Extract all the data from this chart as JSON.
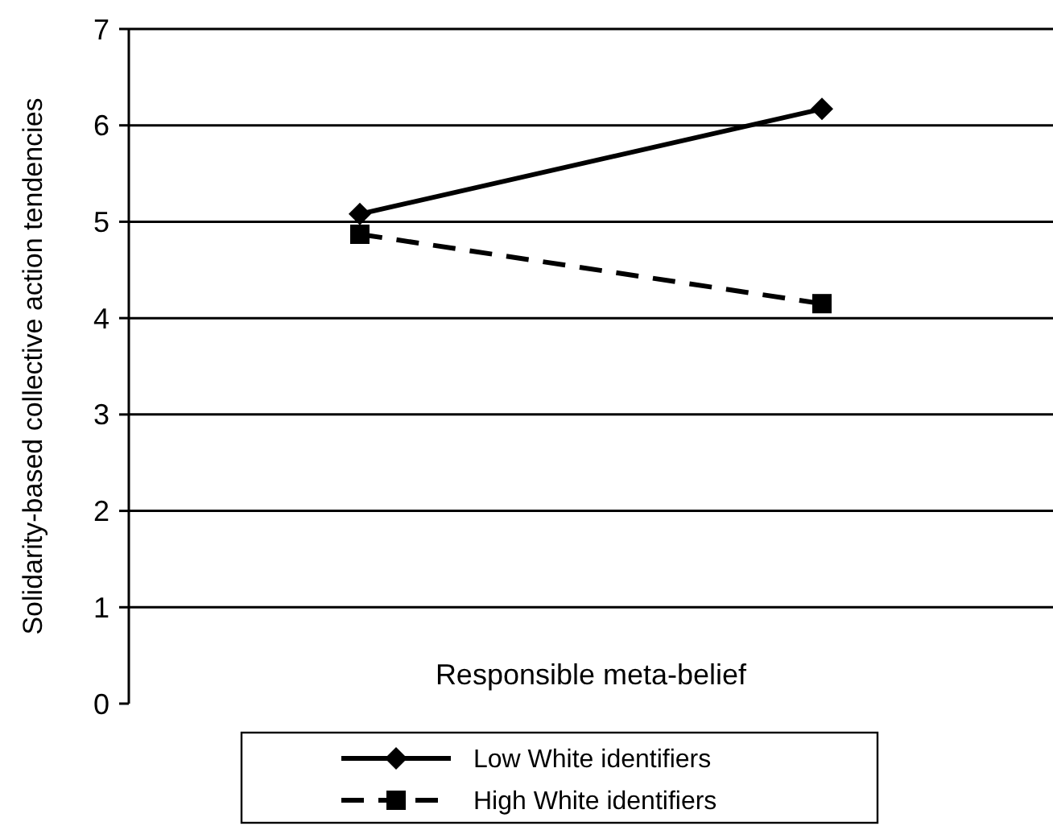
{
  "chart_data": {
    "type": "line",
    "xlabel": "Responsible meta-belief",
    "ylabel": "Solidarity-based collective action tendencies",
    "categories": [
      null,
      null
    ],
    "series": [
      {
        "name": "Low White identifiers",
        "color": "#000000",
        "values": [
          5.08,
          6.17
        ],
        "marker": "diamond",
        "line_style": "solid"
      },
      {
        "name": "High White identifiers",
        "color": "#000000",
        "values": [
          4.87,
          4.15
        ],
        "marker": "square",
        "line_style": "dashed"
      }
    ],
    "ylim": [
      0,
      7
    ],
    "yticks": [
      0,
      1,
      2,
      3,
      4,
      5,
      6,
      7
    ],
    "grid": "y",
    "legend": "bottom"
  }
}
